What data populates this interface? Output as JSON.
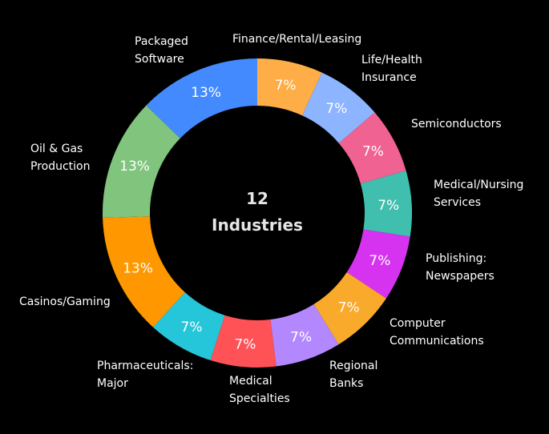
{
  "chart_data": {
    "type": "pie",
    "center_title": [
      "12",
      "Industries"
    ],
    "slices": [
      {
        "label": "Finance/Rental/Leasing",
        "value": 7,
        "display": "7%",
        "color": "#FFAD47"
      },
      {
        "label": "Life/Health Insurance",
        "value": 7,
        "display": "7%",
        "color": "#8CB4FF"
      },
      {
        "label": "Semiconductors",
        "value": 7,
        "display": "7%",
        "color": "#F06292"
      },
      {
        "label": "Medical/Nursing Services",
        "value": 7,
        "display": "7%",
        "color": "#40BFAE"
      },
      {
        "label": "Publishing: Newspapers",
        "value": 7,
        "display": "7%",
        "color": "#D633F0"
      },
      {
        "label": "Computer Communications",
        "value": 7,
        "display": "7%",
        "color": "#FAAA2A"
      },
      {
        "label": "Regional Banks",
        "value": 7,
        "display": "7%",
        "color": "#B388FF"
      },
      {
        "label": "Medical Specialties",
        "value": 7,
        "display": "7%",
        "color": "#FF5257"
      },
      {
        "label": "Pharmaceuticals: Major",
        "value": 7,
        "display": "7%",
        "color": "#26C6DA"
      },
      {
        "label": "Casinos/Gaming",
        "value": 13,
        "display": "13%",
        "color": "#FF9800"
      },
      {
        "label": "Oil & Gas Production",
        "value": 13,
        "display": "13%",
        "color": "#80C47E"
      },
      {
        "label": "Packaged Software",
        "value": 13,
        "display": "13%",
        "color": "#448AFF"
      }
    ]
  }
}
